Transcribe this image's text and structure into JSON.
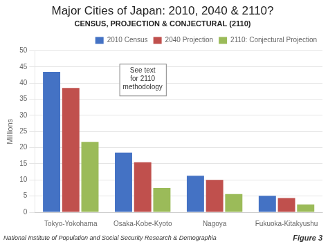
{
  "chart_data": {
    "type": "bar",
    "title": "Major Cities of Japan: 2010, 2040 & 2110?",
    "subtitle": "CENSUS, PROJECTION & CONJECTURAL (2110)",
    "categories": [
      "Tokyo-Yokohama",
      "Osaka-Kobe-Kyoto",
      "Nagoya",
      "Fukuoka-Kitakyushu"
    ],
    "series": [
      {
        "name": "2010 Census",
        "color": "#4472C4",
        "values": [
          43.5,
          18.5,
          11.3,
          5.1
        ]
      },
      {
        "name": "2040 Projection",
        "color": "#C0504D",
        "values": [
          38.5,
          15.5,
          10.0,
          4.4
        ]
      },
      {
        "name": "2110: Conjectural Projection",
        "color": "#9BBB59",
        "values": [
          21.8,
          7.5,
          5.6,
          2.4
        ]
      }
    ],
    "ylabel": "Millions",
    "ylim": [
      0,
      50
    ],
    "yticks": [
      0,
      5,
      10,
      15,
      20,
      25,
      30,
      35,
      40,
      45,
      50
    ],
    "annotations": [
      {
        "text": "See text\nfor 2110\nmethodology",
        "x": "Osaka-Kobe-Kyoto",
        "y": 46
      }
    ],
    "footer": "National Institute of Population and Social Security Research & Demographia",
    "figure_label": "Figure 3",
    "grid": true,
    "legend": "upper right"
  }
}
